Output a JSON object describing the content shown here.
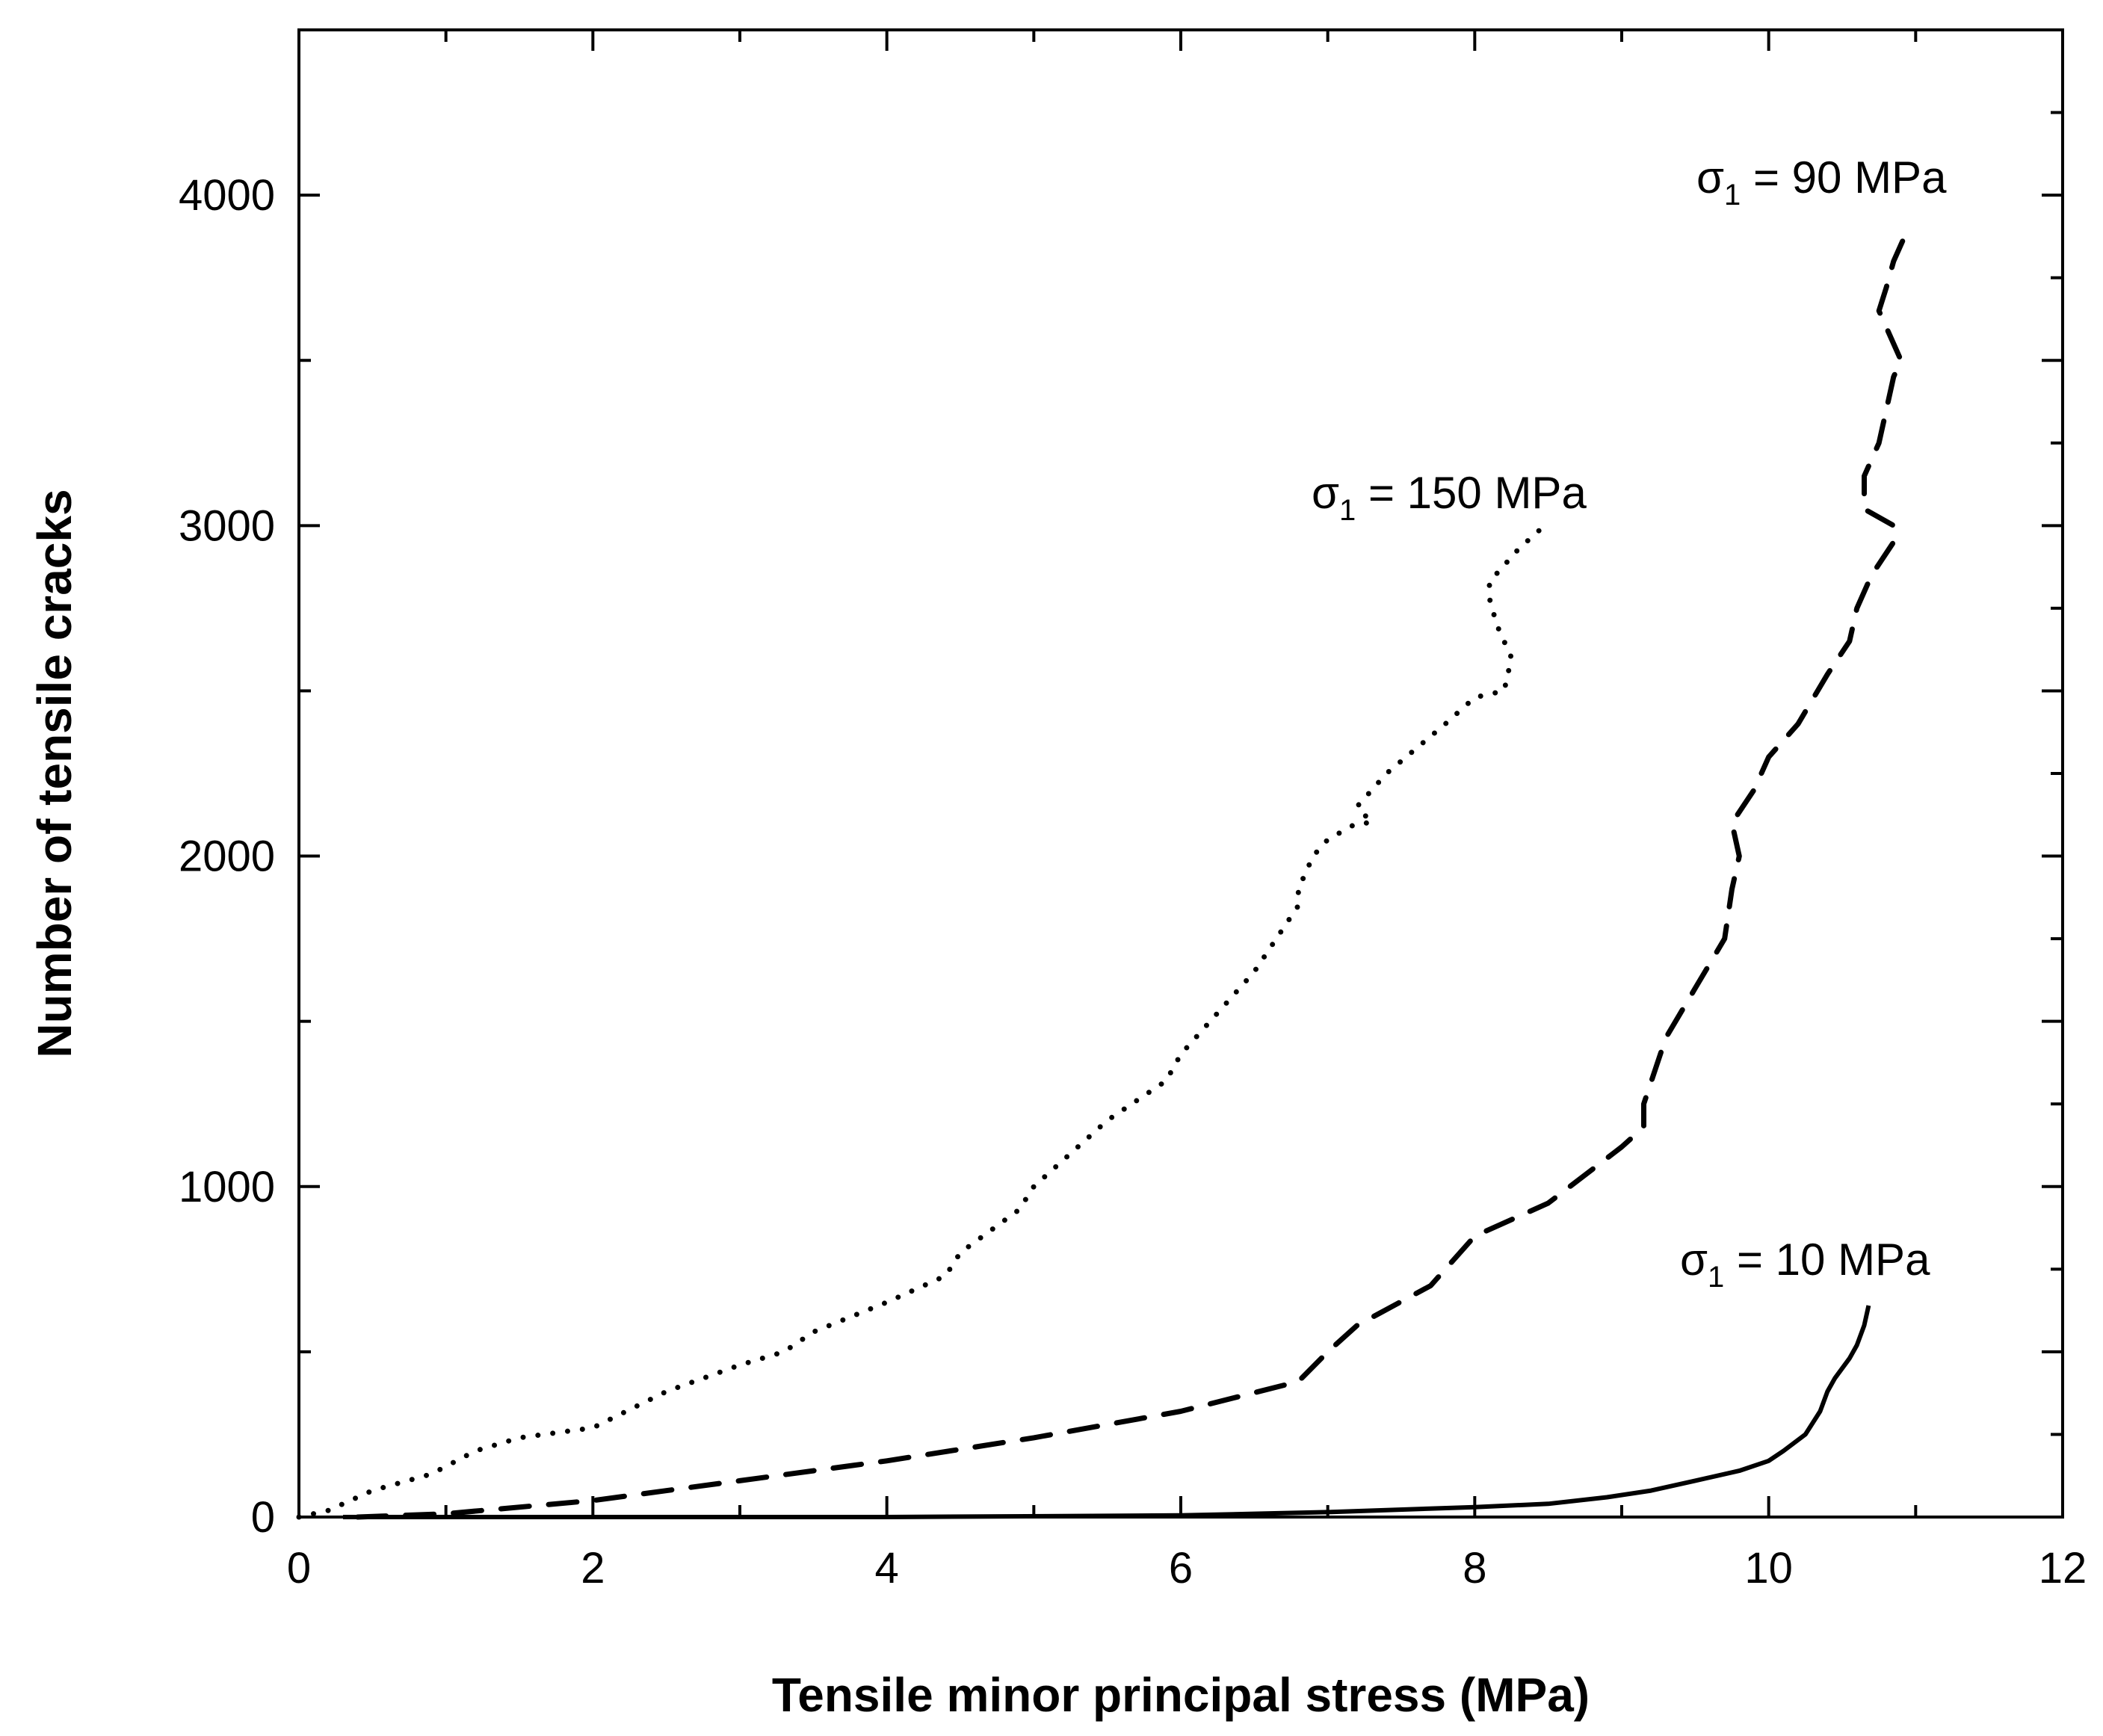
{
  "chart_data": {
    "type": "line",
    "title": "",
    "xlabel": "Tensile minor principal stress (MPa)",
    "ylabel": "Number of tensile cracks",
    "xlim": [
      0,
      12
    ],
    "ylim": [
      0,
      4500
    ],
    "xticks": [
      0,
      2,
      4,
      6,
      8,
      10,
      12
    ],
    "xtick_labels": [
      "0",
      "2",
      "4",
      "6",
      "8",
      "10",
      "12"
    ],
    "yticks": [
      0,
      1000,
      2000,
      3000,
      4000
    ],
    "ytick_labels": [
      "0",
      "1000",
      "2000",
      "3000",
      "4000"
    ],
    "grid": false,
    "series": [
      {
        "name": "σ1 = 150 MPa",
        "annotation": {
          "symbol": "σ",
          "subscript": "1",
          "text": " = 150 MPa"
        },
        "style": "dotted",
        "x": [
          0,
          0.2,
          0.5,
          0.9,
          1.2,
          1.5,
          2.0,
          2.5,
          3.0,
          3.3,
          3.5,
          4.0,
          4.4,
          4.5,
          4.9,
          5.0,
          5.5,
          5.9,
          6.0,
          6.5,
          6.8,
          6.8,
          6.9,
          7.0,
          7.2,
          7.3,
          7.2,
          7.4,
          7.8,
          8.0,
          8.2,
          8.25,
          8.15,
          8.1,
          8.1,
          8.2,
          8.3,
          8.45
        ],
        "y": [
          0,
          20,
          80,
          130,
          200,
          240,
          270,
          380,
          460,
          500,
          560,
          650,
          730,
          800,
          930,
          1000,
          1200,
          1320,
          1400,
          1650,
          1850,
          1900,
          2000,
          2050,
          2100,
          2100,
          2150,
          2250,
          2400,
          2480,
          2500,
          2600,
          2700,
          2780,
          2830,
          2880,
          2930,
          2990
        ]
      },
      {
        "name": "σ1 = 90 MPa",
        "annotation": {
          "symbol": "σ",
          "subscript": "1",
          "text": " = 90 MPa"
        },
        "style": "dashed",
        "x": [
          0.4,
          1.0,
          2.0,
          3.0,
          4.0,
          5.0,
          6.0,
          6.8,
          7.0,
          7.2,
          7.7,
          7.8,
          8.0,
          8.5,
          9.0,
          9.15,
          9.15,
          9.3,
          9.5,
          9.7,
          9.75,
          9.8,
          9.75,
          9.9,
          10.0,
          10.2,
          10.4,
          10.55,
          10.6,
          10.7,
          10.85,
          10.85,
          10.65,
          10.65,
          10.75,
          10.8,
          10.85,
          10.9,
          10.75,
          10.8,
          10.85,
          10.95
        ],
        "y": [
          0,
          10,
          50,
          110,
          170,
          240,
          320,
          410,
          500,
          580,
          700,
          750,
          850,
          950,
          1120,
          1180,
          1250,
          1450,
          1600,
          1750,
          1900,
          2000,
          2100,
          2200,
          2300,
          2400,
          2550,
          2650,
          2750,
          2850,
          2950,
          3000,
          3050,
          3150,
          3250,
          3350,
          3450,
          3500,
          3650,
          3720,
          3800,
          3900
        ]
      },
      {
        "name": "σ1 = 10 MPa",
        "annotation": {
          "symbol": "σ",
          "subscript": "1",
          "text": " = 10 MPa"
        },
        "style": "solid",
        "x": [
          0.3,
          4.0,
          6.0,
          7.0,
          8.0,
          8.5,
          8.9,
          9.2,
          9.5,
          9.8,
          10.0,
          10.1,
          10.25,
          10.35,
          10.4,
          10.45,
          10.55,
          10.6,
          10.65,
          10.68
        ],
        "y": [
          0,
          0,
          5,
          15,
          30,
          40,
          60,
          80,
          110,
          140,
          170,
          200,
          250,
          320,
          380,
          420,
          480,
          520,
          580,
          640
        ]
      }
    ]
  }
}
